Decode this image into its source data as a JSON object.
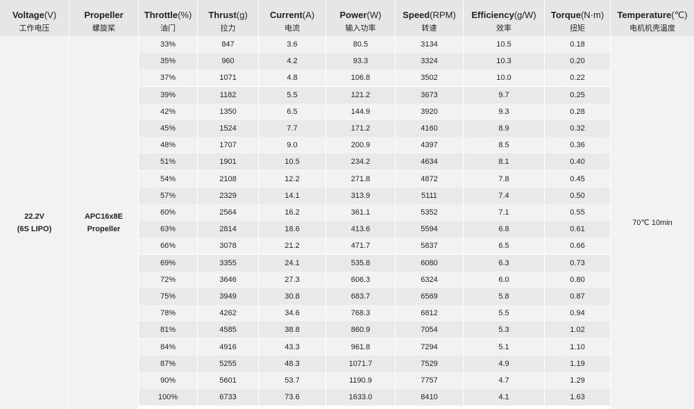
{
  "headers": [
    {
      "en_bold": "Voltage",
      "en_unit": "(V)",
      "cn": "工作电压"
    },
    {
      "en_bold": "Propeller",
      "en_unit": "",
      "cn": "螺旋桨"
    },
    {
      "en_bold": "Throttle",
      "en_unit": "(%)",
      "cn": "油门"
    },
    {
      "en_bold": "Thrust",
      "en_unit": "(g)",
      "cn": "拉力"
    },
    {
      "en_bold": "Current",
      "en_unit": "(A)",
      "cn": "电流"
    },
    {
      "en_bold": "Power",
      "en_unit": "(W)",
      "cn": "输入功率"
    },
    {
      "en_bold": "Speed",
      "en_unit": "(RPM)",
      "cn": "转速"
    },
    {
      "en_bold": "Efficiency",
      "en_unit": "(g/W)",
      "cn": "效率"
    },
    {
      "en_bold": "Torque",
      "en_unit": "(N·m)",
      "cn": "扭矩"
    },
    {
      "en_bold": "Temperature",
      "en_unit": "(℃)",
      "cn": "电机机壳温度"
    }
  ],
  "voltage": {
    "line1": "22.2V",
    "line2": "(6S LIPO)"
  },
  "propeller": {
    "line1": "APC16x8E",
    "line2": "Propeller"
  },
  "temperature": "70℃  10min",
  "rows": [
    [
      "33%",
      "847",
      "3.6",
      "80.5",
      "3134",
      "10.5",
      "0.18"
    ],
    [
      "35%",
      "960",
      "4.2",
      "93.3",
      "3324",
      "10.3",
      "0.20"
    ],
    [
      "37%",
      "1071",
      "4.8",
      "106.8",
      "3502",
      "10.0",
      "0.22"
    ],
    [
      "39%",
      "1182",
      "5.5",
      "121.2",
      "3673",
      "9.7",
      "0.25"
    ],
    [
      "42%",
      "1350",
      "6.5",
      "144.9",
      "3920",
      "9.3",
      "0.28"
    ],
    [
      "45%",
      "1524",
      "7.7",
      "171.2",
      "4160",
      "8.9",
      "0.32"
    ],
    [
      "48%",
      "1707",
      "9.0",
      "200.9",
      "4397",
      "8.5",
      "0.36"
    ],
    [
      "51%",
      "1901",
      "10.5",
      "234.2",
      "4634",
      "8.1",
      "0.40"
    ],
    [
      "54%",
      "2108",
      "12.2",
      "271.8",
      "4872",
      "7.8",
      "0.45"
    ],
    [
      "57%",
      "2329",
      "14.1",
      "313.9",
      "5111",
      "7.4",
      "0.50"
    ],
    [
      "60%",
      "2564",
      "16.2",
      "361.1",
      "5352",
      "7.1",
      "0.55"
    ],
    [
      "63%",
      "2814",
      "18.6",
      "413.6",
      "5594",
      "6.8",
      "0.61"
    ],
    [
      "66%",
      "3078",
      "21.2",
      "471.7",
      "5837",
      "6.5",
      "0.66"
    ],
    [
      "69%",
      "3355",
      "24.1",
      "535.8",
      "6080",
      "6.3",
      "0.73"
    ],
    [
      "72%",
      "3646",
      "27.3",
      "606.3",
      "6324",
      "6.0",
      "0.80"
    ],
    [
      "75%",
      "3949",
      "30.8",
      "683.7",
      "6569",
      "5.8",
      "0.87"
    ],
    [
      "78%",
      "4262",
      "34.6",
      "768.3",
      "6812",
      "5.5",
      "0.94"
    ],
    [
      "81%",
      "4585",
      "38.8",
      "860.9",
      "7054",
      "5.3",
      "1.02"
    ],
    [
      "84%",
      "4916",
      "43.3",
      "961.8",
      "7294",
      "5.1",
      "1.10"
    ],
    [
      "87%",
      "5255",
      "48.3",
      "1071.7",
      "7529",
      "4.9",
      "1.19"
    ],
    [
      "90%",
      "5601",
      "53.7",
      "1190.9",
      "7757",
      "4.7",
      "1.29"
    ],
    [
      "100%",
      "6733",
      "73.6",
      "1633.0",
      "8410",
      "4.1",
      "1.63"
    ]
  ]
}
